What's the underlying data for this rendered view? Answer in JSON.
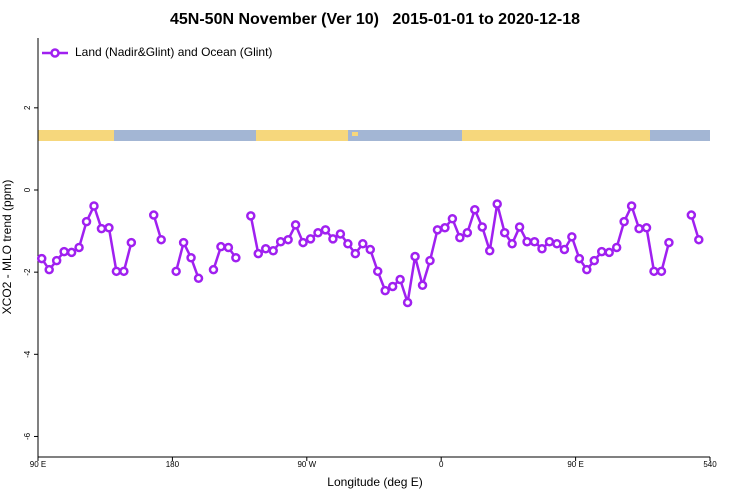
{
  "chart_data": {
    "type": "line",
    "title": "45N-50N November (Ver 10)   2015-01-01 to 2020-12-18",
    "xlabel": "Longitude (deg E)",
    "ylabel": "XCO2 - MLO trend (ppm)",
    "x": [
      92.5,
      97.5,
      102.5,
      107.5,
      112.5,
      117.5,
      122.5,
      127.5,
      132.5,
      137.5,
      142.5,
      147.5,
      152.5,
      157.5,
      162.5,
      167.5,
      172.5,
      177.5,
      182.5,
      187.5,
      192.5,
      197.5,
      202.5,
      207.5,
      212.5,
      217.5,
      222.5,
      227.5,
      232.5,
      237.5,
      242.5,
      247.5,
      252.5,
      257.5,
      262.5,
      267.5,
      272.5,
      277.5,
      282.5,
      287.5,
      292.5,
      297.5,
      302.5,
      307.5,
      312.5,
      317.5,
      322.5,
      327.5,
      332.5,
      337.5,
      342.5,
      347.5,
      352.5,
      357.5,
      362.5,
      367.5,
      372.5,
      377.5,
      382.5,
      387.5,
      392.5,
      397.5,
      402.5,
      407.5,
      412.5,
      417.5,
      422.5,
      427.5,
      432.5,
      437.5,
      442.5,
      447.5,
      452.5,
      457.5,
      462.5,
      467.5,
      472.5,
      477.5,
      482.5,
      487.5,
      492.5,
      497.5,
      502.5,
      507.5,
      512.5,
      517.5,
      522.5,
      527.5,
      532.5,
      537.5
    ],
    "series": [
      {
        "name": "Land (Nadir&Glint) and Ocean (Glint)",
        "color": "#a020f0",
        "values": [
          -1.67,
          -1.94,
          -1.72,
          -1.5,
          -1.52,
          -1.4,
          -0.77,
          -0.39,
          -0.94,
          -0.92,
          -1.98,
          -1.98,
          -1.28,
          null,
          null,
          -0.61,
          -1.21,
          null,
          -1.98,
          -1.28,
          -1.65,
          -2.15,
          null,
          -1.94,
          -1.38,
          -1.4,
          -1.65,
          null,
          -0.63,
          -1.55,
          -1.43,
          -1.48,
          -1.26,
          -1.21,
          -0.85,
          -1.28,
          -1.19,
          -1.04,
          -0.97,
          -1.19,
          -1.07,
          -1.31,
          -1.55,
          -1.31,
          -1.45,
          -1.98,
          -2.45,
          -2.35,
          -2.18,
          -2.74,
          -1.62,
          -2.32,
          -1.72,
          -0.97,
          -0.92,
          -0.7,
          -1.16,
          -1.04,
          -0.48,
          -0.9,
          -1.48,
          -0.34,
          -1.04,
          -1.31,
          -0.9,
          -1.26,
          -1.26,
          -1.43,
          -1.26,
          -1.31,
          -1.45,
          -1.14,
          -1.67,
          -1.94,
          -1.72,
          -1.5,
          -1.52,
          -1.4,
          -0.77,
          -0.39,
          -0.94,
          -0.92,
          -1.98,
          -1.98,
          -1.28,
          null,
          null,
          -0.61,
          -1.21,
          null
        ]
      }
    ],
    "xlim": [
      90,
      540
    ],
    "xticks": [
      {
        "value": 90,
        "label": "90 E"
      },
      180,
      {
        "value": 270,
        "label": "90 W"
      },
      {
        "value": 360,
        "label": "0"
      },
      {
        "value": 450,
        "label": "90 E"
      },
      540
    ],
    "ylim": [
      -6.5,
      3.7
    ],
    "yticks": [
      -6,
      -4,
      -2,
      0,
      2
    ],
    "legend": "top-left"
  }
}
